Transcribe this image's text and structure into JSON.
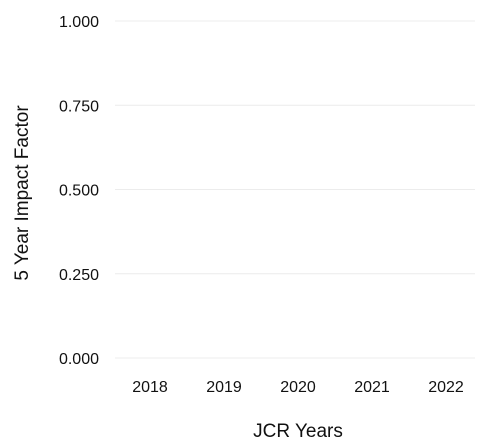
{
  "chart_data": {
    "type": "line",
    "title": "",
    "xlabel": "JCR Years",
    "ylabel": "5 Year Impact Factor",
    "categories": [
      "2018",
      "2019",
      "2020",
      "2021",
      "2022"
    ],
    "y_ticks": [
      "0.000",
      "0.250",
      "0.500",
      "0.750",
      "1.000"
    ],
    "ylim": [
      0,
      1
    ],
    "grid": true,
    "series": []
  }
}
